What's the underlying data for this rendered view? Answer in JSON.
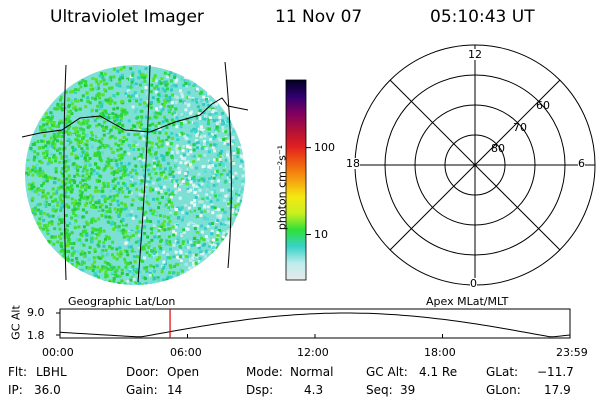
{
  "header": {
    "instrument": "Ultraviolet Imager",
    "date": "11 Nov 07",
    "time": "05:10:43 UT"
  },
  "colorbar": {
    "label": "photon cm⁻²s⁻¹",
    "ticks": [
      {
        "label": "100",
        "value": 100
      },
      {
        "label": "10",
        "value": 10
      }
    ],
    "range": [
      3,
      600
    ],
    "scale": "log",
    "stops": [
      "#e8eaea",
      "#bfecec",
      "#38d2c8",
      "#2ee03a",
      "#c8f020",
      "#f5e810",
      "#f5a010",
      "#f06010",
      "#e02020",
      "#b01038",
      "#800060",
      "#300070",
      "#000020"
    ]
  },
  "polar": {
    "mlt_labels": {
      "top": "12",
      "left": "18",
      "right": "6",
      "bottom": "0"
    },
    "lat_labels": [
      "60",
      "70",
      "80"
    ]
  },
  "panel_labels": {
    "left": "Geographic Lat/Lon",
    "right": "Apex MLat/MLT"
  },
  "altitude_plot": {
    "ylabel": "GC Alt",
    "yticks": [
      "9.0",
      "1.8"
    ],
    "xticks": [
      "00:00",
      "06:00",
      "12:00",
      "18:00",
      "23:59"
    ],
    "marker_time": "05:10:43",
    "marker_color": "#dd0000"
  },
  "footer": {
    "row1": [
      {
        "label": "Flt:",
        "value": "LBHL"
      },
      {
        "label": "Door:",
        "value": "Open"
      },
      {
        "label": "Mode:",
        "value": "Normal"
      },
      {
        "label": "GC Alt:",
        "value": "4.1 Re"
      },
      {
        "label": "GLat:",
        "value": "−11.7"
      }
    ],
    "row2": [
      {
        "label": "IP:",
        "value": "36.0"
      },
      {
        "label": "Gain:",
        "value": "14"
      },
      {
        "label": "Dsp:",
        "value": "4.3"
      },
      {
        "label": "Seq:",
        "value": "39"
      },
      {
        "label": "GLon:",
        "value": "17.9"
      }
    ]
  }
}
